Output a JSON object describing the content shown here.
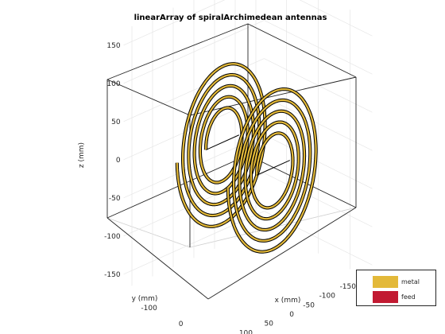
{
  "chart_data": {
    "type": "3d-surface",
    "title": "linearArray of spiralArchimedean antennas",
    "xlabel": "x (mm)",
    "ylabel": "y (mm)",
    "zlabel": "z (mm)",
    "xticks": [
      -100,
      0,
      100
    ],
    "yticks": [
      150,
      100,
      50,
      0,
      -50,
      -100,
      -150
    ],
    "zticks": [
      150,
      100,
      50,
      0,
      -50,
      -100,
      -150
    ],
    "xlim": [
      -170,
      170
    ],
    "ylim": [
      -170,
      170
    ],
    "zlim": [
      -170,
      170
    ],
    "grid": true,
    "legend_position": "bottom-right",
    "legend": [
      {
        "name": "metal",
        "color": "#e3b939"
      },
      {
        "name": "feed",
        "color": "#c21a32"
      }
    ],
    "elements": [
      {
        "x": -80,
        "turns": 5,
        "inner_radius_mm": 40,
        "outer_radius_mm": 110
      },
      {
        "x": 80,
        "turns": 5,
        "inner_radius_mm": 40,
        "outer_radius_mm": 110
      }
    ]
  }
}
